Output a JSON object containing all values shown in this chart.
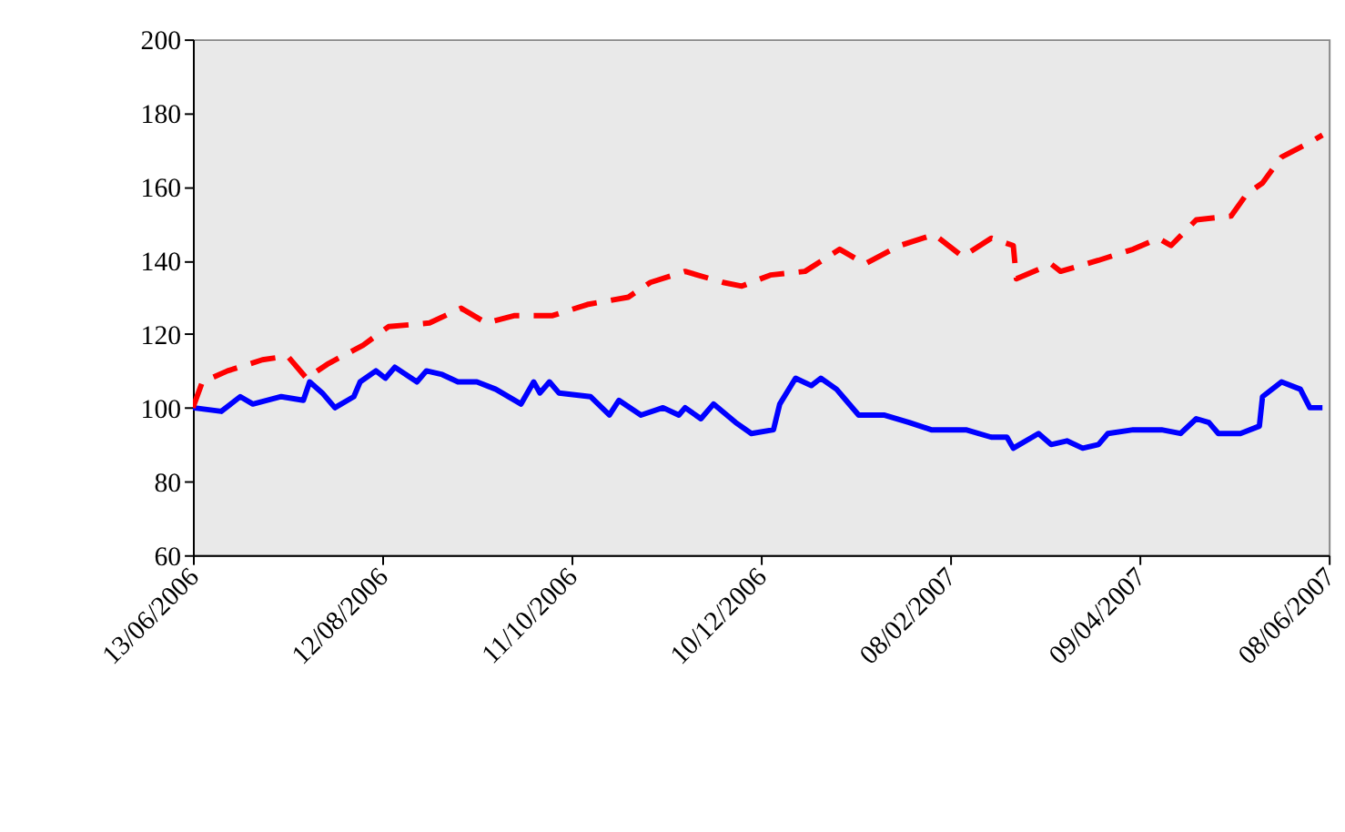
{
  "chart_data": {
    "type": "line",
    "xlim": [
      "2006-06-13",
      "2007-06-08"
    ],
    "xticks": [
      {
        "value": "2006-06-13",
        "label": "13/06/2006"
      },
      {
        "value": "2006-08-12",
        "label": "12/08/2006"
      },
      {
        "value": "2006-10-11",
        "label": "11/10/2006"
      },
      {
        "value": "2006-12-10",
        "label": "10/12/2006"
      },
      {
        "value": "2007-02-08",
        "label": "08/02/2007"
      },
      {
        "value": "2007-04-09",
        "label": "09/04/2007"
      },
      {
        "value": "2007-06-08",
        "label": "08/06/2007"
      }
    ],
    "ylim": [
      60,
      200
    ],
    "yticks": [
      60,
      80,
      100,
      120,
      140,
      160,
      180,
      200
    ],
    "series": [
      {
        "color": "#0000ff",
        "line_style": "solid",
        "x": [
          "2006-06-13",
          "2006-06-22",
          "2006-06-28",
          "2006-07-02",
          "2006-07-11",
          "2006-07-18",
          "2006-07-20",
          "2006-07-24",
          "2006-07-28",
          "2006-08-03",
          "2006-08-05",
          "2006-08-10",
          "2006-08-13",
          "2006-08-16",
          "2006-08-23",
          "2006-08-26",
          "2006-08-31",
          "2006-09-05",
          "2006-09-11",
          "2006-09-17",
          "2006-09-25",
          "2006-09-29",
          "2006-10-01",
          "2006-10-04",
          "2006-10-07",
          "2006-10-17",
          "2006-10-23",
          "2006-10-26",
          "2006-11-02",
          "2006-11-09",
          "2006-11-14",
          "2006-11-16",
          "2006-11-21",
          "2006-11-25",
          "2006-12-02",
          "2006-12-07",
          "2006-12-14",
          "2006-12-16",
          "2006-12-21",
          "2006-12-26",
          "2006-12-29",
          "2007-01-03",
          "2007-01-05",
          "2007-01-10",
          "2007-01-18",
          "2007-01-26",
          "2007-02-02",
          "2007-02-13",
          "2007-02-21",
          "2007-02-26",
          "2007-02-28",
          "2007-03-08",
          "2007-03-12",
          "2007-03-17",
          "2007-03-22",
          "2007-03-27",
          "2007-03-30",
          "2007-04-07",
          "2007-04-16",
          "2007-04-22",
          "2007-04-27",
          "2007-05-01",
          "2007-05-04",
          "2007-05-11",
          "2007-05-17",
          "2007-05-18",
          "2007-05-24",
          "2007-05-30",
          "2007-06-02",
          "2007-06-06"
        ],
        "values": [
          100,
          99,
          103,
          101,
          103,
          102,
          107,
          104,
          100,
          103,
          107,
          110,
          108,
          111,
          107,
          110,
          109,
          107,
          107,
          105,
          101,
          107,
          104,
          107,
          104,
          103,
          98,
          102,
          98,
          100,
          98,
          100,
          97,
          101,
          96,
          93,
          94,
          101,
          108,
          106,
          108,
          105,
          103,
          98,
          98,
          96,
          94,
          94,
          92,
          92,
          89,
          93,
          90,
          91,
          89,
          90,
          93,
          94,
          94,
          93,
          97,
          96,
          93,
          93,
          95,
          103,
          107,
          105,
          100,
          100
        ]
      },
      {
        "color": "#ff0000",
        "line_style": "dashed",
        "x": [
          "2006-06-13",
          "2006-06-16",
          "2006-06-24",
          "2006-07-05",
          "2006-07-13",
          "2006-07-19",
          "2006-07-26",
          "2006-08-06",
          "2006-08-14",
          "2006-08-27",
          "2006-09-06",
          "2006-09-14",
          "2006-09-23",
          "2006-10-05",
          "2006-10-16",
          "2006-10-29",
          "2006-11-05",
          "2006-11-16",
          "2006-11-28",
          "2006-12-04",
          "2006-12-13",
          "2006-12-24",
          "2007-01-04",
          "2007-01-12",
          "2007-01-23",
          "2007-02-03",
          "2007-02-12",
          "2007-02-21",
          "2007-02-28",
          "2007-03-01",
          "2007-03-12",
          "2007-03-15",
          "2007-03-27",
          "2007-04-07",
          "2007-04-15",
          "2007-04-19",
          "2007-04-27",
          "2007-05-08",
          "2007-05-13",
          "2007-05-18",
          "2007-05-24",
          "2007-06-02",
          "2007-06-06"
        ],
        "values": [
          100,
          107,
          110,
          113,
          114,
          108,
          112,
          117,
          122,
          123,
          127,
          123,
          125,
          125,
          128,
          130,
          134,
          137,
          134,
          133,
          136,
          137,
          143,
          139,
          144,
          147,
          141,
          146,
          144,
          135,
          139,
          137,
          140,
          143,
          146,
          144,
          151,
          152,
          158,
          161,
          168,
          172,
          174
        ]
      }
    ]
  }
}
